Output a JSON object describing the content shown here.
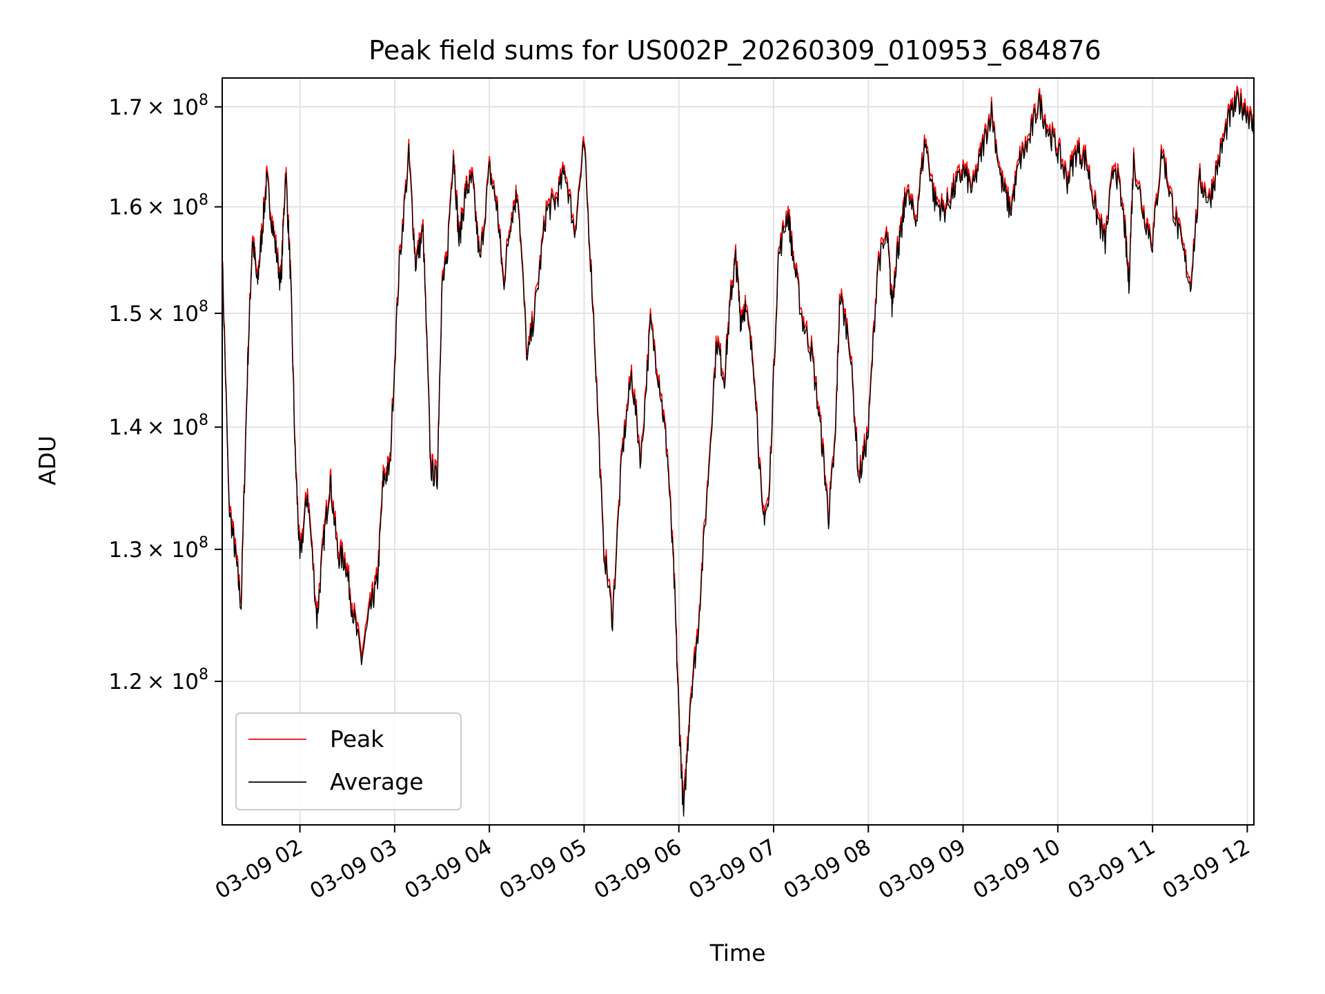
{
  "chart_data": {
    "type": "line",
    "title": "Peak field sums for US002P_20260309_010953_684876",
    "xlabel": "Time",
    "ylabel": "ADU",
    "yscale": "log",
    "ylim": [
      110000000,
      173000000
    ],
    "x_unit": "hours (2026-03-09)",
    "xlim": [
      1.18,
      12.07
    ],
    "grid": true,
    "legend_position": "lower-left",
    "x_ticks": [
      {
        "x": 2,
        "label": "03-09 02"
      },
      {
        "x": 3,
        "label": "03-09 03"
      },
      {
        "x": 4,
        "label": "03-09 04"
      },
      {
        "x": 5,
        "label": "03-09 05"
      },
      {
        "x": 6,
        "label": "03-09 06"
      },
      {
        "x": 7,
        "label": "03-09 07"
      },
      {
        "x": 8,
        "label": "03-09 08"
      },
      {
        "x": 9,
        "label": "03-09 09"
      },
      {
        "x": 10,
        "label": "03-09 10"
      },
      {
        "x": 11,
        "label": "03-09 11"
      },
      {
        "x": 12,
        "label": "03-09 12"
      }
    ],
    "y_ticks": [
      {
        "y": 120000000,
        "mantissa": "1.2",
        "base": "× 10",
        "exp": "8"
      },
      {
        "y": 130000000,
        "mantissa": "1.3",
        "base": "× 10",
        "exp": "8"
      },
      {
        "y": 140000000,
        "mantissa": "1.4",
        "base": "× 10",
        "exp": "8"
      },
      {
        "y": 150000000,
        "mantissa": "1.5",
        "base": "× 10",
        "exp": "8"
      },
      {
        "y": 160000000,
        "mantissa": "1.6",
        "base": "× 10",
        "exp": "8"
      },
      {
        "y": 170000000,
        "mantissa": "1.7",
        "base": "× 10",
        "exp": "8"
      }
    ],
    "x": [
      1.18,
      1.25,
      1.32,
      1.38,
      1.45,
      1.5,
      1.55,
      1.6,
      1.65,
      1.72,
      1.8,
      1.85,
      1.9,
      1.95,
      2.0,
      2.08,
      2.18,
      2.25,
      2.32,
      2.4,
      2.48,
      2.55,
      2.65,
      2.75,
      2.82,
      2.88,
      2.95,
      3.05,
      3.15,
      3.22,
      3.3,
      3.38,
      3.45,
      3.5,
      3.55,
      3.62,
      3.68,
      3.75,
      3.82,
      3.9,
      4.0,
      4.08,
      4.15,
      4.22,
      4.3,
      4.4,
      4.5,
      4.6,
      4.7,
      4.8,
      4.9,
      5.0,
      5.1,
      5.2,
      5.3,
      5.4,
      5.5,
      5.6,
      5.7,
      5.8,
      5.88,
      5.95,
      6.0,
      6.05,
      6.12,
      6.2,
      6.3,
      6.4,
      6.48,
      6.55,
      6.6,
      6.65,
      6.7,
      6.8,
      6.88,
      6.95,
      7.05,
      7.15,
      7.2,
      7.3,
      7.4,
      7.5,
      7.58,
      7.65,
      7.7,
      7.8,
      7.9,
      8.0,
      8.1,
      8.2,
      8.25,
      8.3,
      8.35,
      8.4,
      8.5,
      8.6,
      8.7,
      8.8,
      8.9,
      9.0,
      9.1,
      9.2,
      9.3,
      9.4,
      9.5,
      9.6,
      9.7,
      9.8,
      9.9,
      10.0,
      10.1,
      10.2,
      10.3,
      10.4,
      10.5,
      10.6,
      10.7,
      10.75,
      10.8,
      10.9,
      11.0,
      11.1,
      11.2,
      11.3,
      11.4,
      11.5,
      11.6,
      11.7,
      11.8,
      11.9,
      12.0,
      12.07
    ],
    "series": [
      {
        "name": "Peak",
        "color": "#ff0000",
        "values": [
          155500000,
          134000000,
          130000000,
          126000000,
          146000000,
          157500000,
          153000000,
          158000000,
          163000000,
          158000000,
          153000000,
          164000000,
          154000000,
          138000000,
          129500000,
          135000000,
          125000000,
          131000000,
          136000000,
          130000000,
          129500000,
          126000000,
          122000000,
          126000000,
          128000000,
          136000000,
          137000000,
          155000000,
          165500000,
          155000000,
          158000000,
          137000000,
          136000000,
          153000000,
          155000000,
          166000000,
          157000000,
          162000000,
          163000000,
          155000000,
          164000000,
          160500000,
          153000000,
          159000000,
          162000000,
          146000000,
          152000000,
          160000000,
          161000000,
          164000000,
          158000000,
          166500000,
          150000000,
          131000000,
          125000000,
          138000000,
          145000000,
          137500000,
          149500000,
          144000000,
          138000000,
          128000000,
          118000000,
          111000000,
          119000000,
          124000000,
          135000000,
          148000000,
          144500000,
          152000000,
          155500000,
          150000000,
          151000000,
          145000000,
          133000000,
          134000000,
          155500000,
          160000000,
          156000000,
          150000000,
          147000000,
          140000000,
          133000000,
          139000000,
          152000000,
          148000000,
          136000000,
          140000000,
          155000000,
          157500000,
          151000000,
          156000000,
          158000000,
          162000000,
          159000000,
          167000000,
          161000000,
          160000000,
          162000000,
          164000000,
          162000000,
          166000000,
          170000000,
          163000000,
          160000000,
          165000000,
          167000000,
          171000000,
          168000000,
          166000000,
          163000000,
          166000000,
          165000000,
          160000000,
          157000000,
          165000000,
          159000000,
          153000000,
          165000000,
          160000000,
          157000000,
          166000000,
          161000000,
          157000000,
          153000000,
          163000000,
          161000000,
          165000000,
          169000000,
          171000000,
          170000000,
          168000000
        ]
      },
      {
        "name": "Average",
        "color": "#000000",
        "values": [
          155000000,
          133500000,
          129500000,
          125500000,
          145500000,
          157000000,
          152500000,
          157500000,
          162500000,
          157500000,
          152500000,
          163500000,
          153500000,
          137500000,
          129000000,
          134500000,
          124500000,
          130500000,
          135500000,
          129500000,
          129000000,
          125500000,
          121500000,
          125500000,
          127500000,
          135500000,
          136500000,
          154500000,
          165000000,
          154500000,
          157500000,
          136500000,
          135500000,
          152500000,
          154500000,
          165500000,
          156500000,
          161500000,
          162500000,
          154500000,
          163500000,
          160000000,
          152500000,
          158500000,
          161500000,
          145500000,
          151500000,
          159500000,
          160500000,
          163500000,
          157500000,
          166000000,
          149500000,
          130500000,
          124500000,
          137500000,
          144500000,
          137000000,
          149000000,
          143500000,
          137500000,
          127500000,
          117500000,
          110500000,
          118500000,
          123500000,
          134500000,
          147500000,
          144000000,
          151500000,
          155000000,
          149500000,
          150500000,
          144500000,
          132500000,
          133500000,
          155000000,
          159500000,
          155500000,
          149500000,
          146500000,
          139500000,
          132500000,
          138500000,
          151500000,
          147500000,
          135500000,
          139500000,
          154500000,
          157000000,
          150500000,
          155500000,
          157500000,
          161500000,
          158500000,
          166500000,
          160500000,
          159500000,
          161500000,
          163500000,
          161500000,
          165500000,
          169500000,
          162500000,
          159500000,
          164500000,
          166500000,
          170500000,
          167500000,
          165500000,
          162500000,
          165500000,
          164500000,
          159500000,
          156500000,
          164500000,
          158500000,
          152500000,
          164500000,
          159500000,
          156500000,
          165500000,
          160500000,
          156500000,
          152500000,
          162500000,
          160500000,
          164500000,
          168500000,
          170500000,
          169500000,
          167500000
        ]
      }
    ]
  }
}
